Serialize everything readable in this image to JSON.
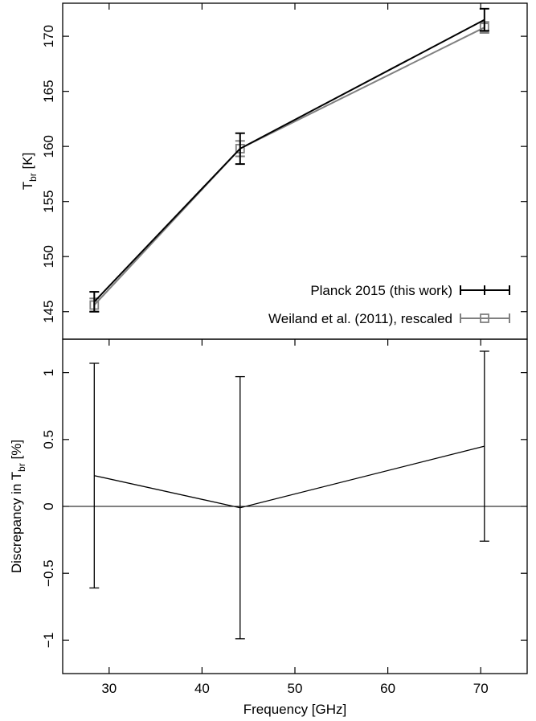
{
  "chart_data": [
    {
      "type": "line",
      "xlabel": "",
      "ylabel": {
        "main": "T",
        "sub": "br",
        "suffix": " [K]"
      },
      "xlim": [
        25,
        75
      ],
      "ylim": [
        142.5,
        173
      ],
      "yticks": [
        145,
        150,
        155,
        160,
        165,
        170
      ],
      "grid": false,
      "legend_position": "bottom-right",
      "series": [
        {
          "name": "Planck 2015 (this work)",
          "color": "#000000",
          "marker": "none",
          "x": [
            28.4,
            44.1,
            70.4
          ],
          "y": [
            145.9,
            159.8,
            171.5
          ],
          "err": [
            0.9,
            1.4,
            1.0
          ]
        },
        {
          "name": "Weiland et al. (2011), rescaled",
          "color": "#808080",
          "marker": "square",
          "x": [
            28.4,
            44.1,
            70.4
          ],
          "y": [
            145.6,
            159.8,
            170.8
          ],
          "err": [
            0.6,
            0.7,
            0.5
          ]
        }
      ]
    },
    {
      "type": "line",
      "xlabel": "Frequency [GHz]",
      "ylabel": {
        "main": "Discrepancy in T",
        "sub": "br",
        "suffix": " [%]"
      },
      "xlim": [
        25,
        75
      ],
      "ylim": [
        -1.25,
        1.25
      ],
      "xticks": [
        30,
        40,
        50,
        60,
        70
      ],
      "yticks": [
        -1,
        -0.5,
        0,
        0.5,
        1
      ],
      "ytick_labels": [
        "−1",
        "−0.5",
        "0",
        "0.5",
        "1"
      ],
      "reference_line": 0,
      "grid": false,
      "series": [
        {
          "color": "#000000",
          "x": [
            28.4,
            44.1,
            70.4
          ],
          "y": [
            0.23,
            -0.01,
            0.45
          ],
          "err": [
            0.84,
            0.98,
            0.71
          ]
        }
      ]
    }
  ]
}
